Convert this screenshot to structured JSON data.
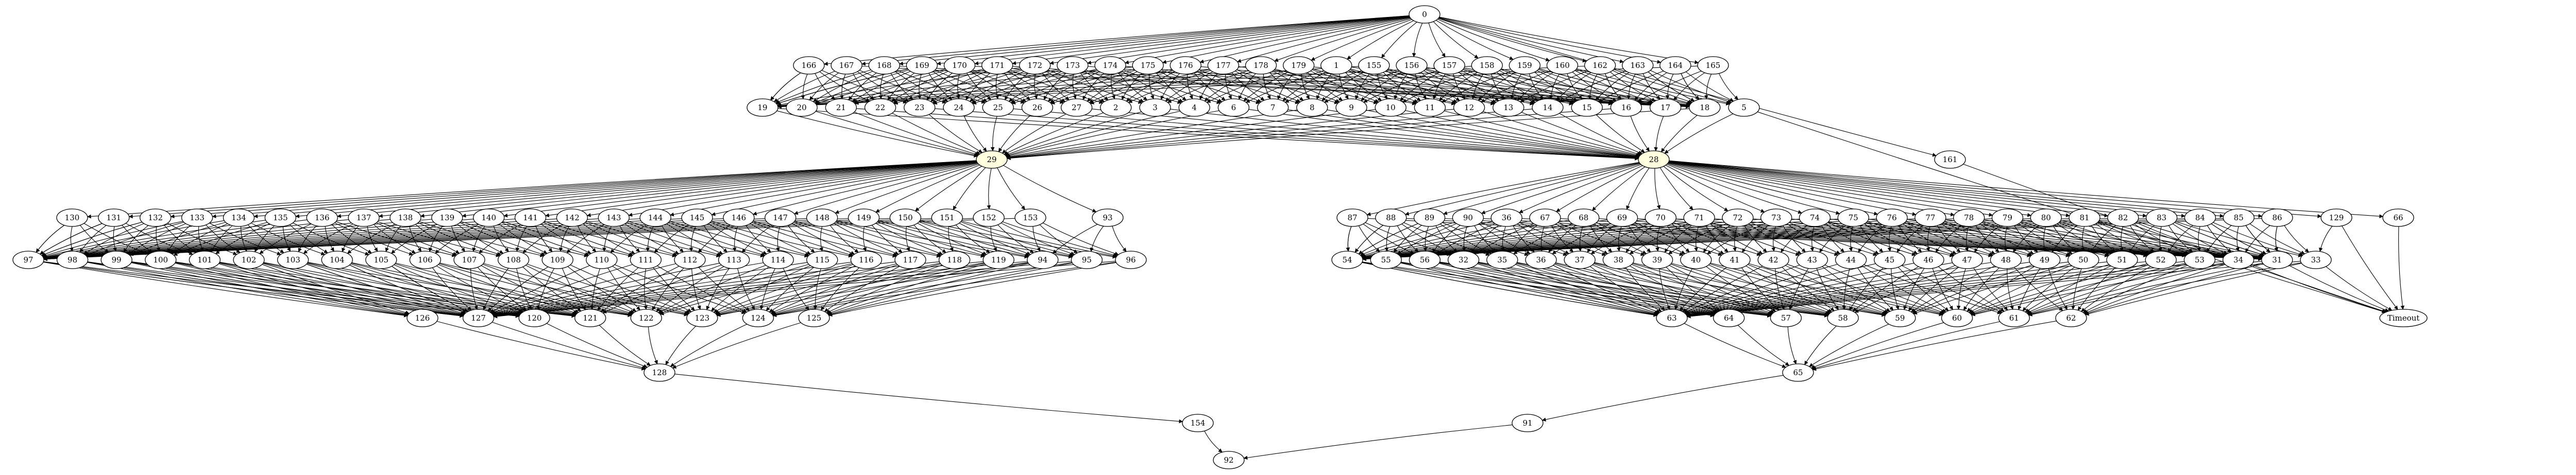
{
  "graph": {
    "nodes": [
      {
        "id": "0",
        "label": "0"
      },
      {
        "id": "166",
        "label": "166"
      },
      {
        "id": "167",
        "label": "167"
      },
      {
        "id": "168",
        "label": "168"
      },
      {
        "id": "169",
        "label": "169"
      },
      {
        "id": "170",
        "label": "170"
      },
      {
        "id": "171",
        "label": "171"
      },
      {
        "id": "172",
        "label": "172"
      },
      {
        "id": "173",
        "label": "173"
      },
      {
        "id": "174",
        "label": "174"
      },
      {
        "id": "175",
        "label": "175"
      },
      {
        "id": "176",
        "label": "176"
      },
      {
        "id": "177",
        "label": "177"
      },
      {
        "id": "178",
        "label": "178"
      },
      {
        "id": "179",
        "label": "179"
      },
      {
        "id": "1",
        "label": "1"
      },
      {
        "id": "155",
        "label": "155"
      },
      {
        "id": "156",
        "label": "156"
      },
      {
        "id": "157",
        "label": "157"
      },
      {
        "id": "158",
        "label": "158"
      },
      {
        "id": "159",
        "label": "159"
      },
      {
        "id": "160",
        "label": "160"
      },
      {
        "id": "162",
        "label": "162"
      },
      {
        "id": "163",
        "label": "163"
      },
      {
        "id": "164",
        "label": "164"
      },
      {
        "id": "165",
        "label": "165"
      },
      {
        "id": "161",
        "label": "161"
      },
      {
        "id": "19",
        "label": "19"
      },
      {
        "id": "20",
        "label": "20"
      },
      {
        "id": "21",
        "label": "21"
      },
      {
        "id": "22",
        "label": "22"
      },
      {
        "id": "23",
        "label": "23"
      },
      {
        "id": "24",
        "label": "24"
      },
      {
        "id": "25",
        "label": "25"
      },
      {
        "id": "26",
        "label": "26"
      },
      {
        "id": "27",
        "label": "27"
      },
      {
        "id": "2",
        "label": "2"
      },
      {
        "id": "3",
        "label": "3"
      },
      {
        "id": "4",
        "label": "4"
      },
      {
        "id": "6",
        "label": "6"
      },
      {
        "id": "7",
        "label": "7"
      },
      {
        "id": "8",
        "label": "8"
      },
      {
        "id": "9",
        "label": "9"
      },
      {
        "id": "10",
        "label": "10"
      },
      {
        "id": "11",
        "label": "11"
      },
      {
        "id": "12",
        "label": "12"
      },
      {
        "id": "13",
        "label": "13"
      },
      {
        "id": "14",
        "label": "14"
      },
      {
        "id": "15",
        "label": "15"
      },
      {
        "id": "16",
        "label": "16"
      },
      {
        "id": "17",
        "label": "17"
      },
      {
        "id": "18",
        "label": "18"
      },
      {
        "id": "5",
        "label": "5"
      },
      {
        "id": "29",
        "label": "29",
        "highlight": true
      },
      {
        "id": "28",
        "label": "28",
        "highlight": true
      },
      {
        "id": "130",
        "label": "130"
      },
      {
        "id": "131",
        "label": "131"
      },
      {
        "id": "132",
        "label": "132"
      },
      {
        "id": "133",
        "label": "133"
      },
      {
        "id": "134",
        "label": "134"
      },
      {
        "id": "135",
        "label": "135"
      },
      {
        "id": "136",
        "label": "136"
      },
      {
        "id": "137",
        "label": "137"
      },
      {
        "id": "138",
        "label": "138"
      },
      {
        "id": "139",
        "label": "139"
      },
      {
        "id": "140",
        "label": "140"
      },
      {
        "id": "141",
        "label": "141"
      },
      {
        "id": "142",
        "label": "142"
      },
      {
        "id": "143",
        "label": "143"
      },
      {
        "id": "144",
        "label": "144"
      },
      {
        "id": "145",
        "label": "145"
      },
      {
        "id": "146",
        "label": "146"
      },
      {
        "id": "147",
        "label": "147"
      },
      {
        "id": "148",
        "label": "148"
      },
      {
        "id": "149",
        "label": "149"
      },
      {
        "id": "150",
        "label": "150"
      },
      {
        "id": "151",
        "label": "151"
      },
      {
        "id": "152",
        "label": "152"
      },
      {
        "id": "153",
        "label": "153"
      },
      {
        "id": "93",
        "label": "93"
      },
      {
        "id": "87",
        "label": "87"
      },
      {
        "id": "88",
        "label": "88"
      },
      {
        "id": "89",
        "label": "89"
      },
      {
        "id": "90",
        "label": "90"
      },
      {
        "id": "36",
        "label": "36"
      },
      {
        "id": "67",
        "label": "67"
      },
      {
        "id": "68",
        "label": "68"
      },
      {
        "id": "69",
        "label": "69"
      },
      {
        "id": "70",
        "label": "70"
      },
      {
        "id": "71",
        "label": "71"
      },
      {
        "id": "72",
        "label": "72"
      },
      {
        "id": "73",
        "label": "73"
      },
      {
        "id": "74",
        "label": "74"
      },
      {
        "id": "75",
        "label": "75"
      },
      {
        "id": "76",
        "label": "76"
      },
      {
        "id": "77",
        "label": "77"
      },
      {
        "id": "78",
        "label": "78"
      },
      {
        "id": "79",
        "label": "79"
      },
      {
        "id": "80",
        "label": "80"
      },
      {
        "id": "81",
        "label": "81"
      },
      {
        "id": "82",
        "label": "82"
      },
      {
        "id": "83",
        "label": "83"
      },
      {
        "id": "84",
        "label": "84"
      },
      {
        "id": "85",
        "label": "85"
      },
      {
        "id": "86",
        "label": "86"
      },
      {
        "id": "129",
        "label": "129"
      },
      {
        "id": "66",
        "label": "66"
      },
      {
        "id": "97",
        "label": "97"
      },
      {
        "id": "98",
        "label": "98"
      },
      {
        "id": "99",
        "label": "99"
      },
      {
        "id": "100",
        "label": "100"
      },
      {
        "id": "101",
        "label": "101"
      },
      {
        "id": "102",
        "label": "102"
      },
      {
        "id": "103",
        "label": "103"
      },
      {
        "id": "104",
        "label": "104"
      },
      {
        "id": "105",
        "label": "105"
      },
      {
        "id": "106",
        "label": "106"
      },
      {
        "id": "107",
        "label": "107"
      },
      {
        "id": "108",
        "label": "108"
      },
      {
        "id": "109",
        "label": "109"
      },
      {
        "id": "110",
        "label": "110"
      },
      {
        "id": "111",
        "label": "111"
      },
      {
        "id": "112",
        "label": "112"
      },
      {
        "id": "113",
        "label": "113"
      },
      {
        "id": "114",
        "label": "114"
      },
      {
        "id": "115",
        "label": "115"
      },
      {
        "id": "116",
        "label": "116"
      },
      {
        "id": "117",
        "label": "117"
      },
      {
        "id": "118",
        "label": "118"
      },
      {
        "id": "119",
        "label": "119"
      },
      {
        "id": "94",
        "label": "94"
      },
      {
        "id": "95",
        "label": "95"
      },
      {
        "id": "96",
        "label": "96"
      },
      {
        "id": "54",
        "label": "54"
      },
      {
        "id": "55",
        "label": "55"
      },
      {
        "id": "56",
        "label": "56"
      },
      {
        "id": "32",
        "label": "32"
      },
      {
        "id": "35",
        "label": "35"
      },
      {
        "id": "36b",
        "label": "36"
      },
      {
        "id": "37",
        "label": "37"
      },
      {
        "id": "38",
        "label": "38"
      },
      {
        "id": "39",
        "label": "39"
      },
      {
        "id": "40",
        "label": "40"
      },
      {
        "id": "41",
        "label": "41"
      },
      {
        "id": "42",
        "label": "42"
      },
      {
        "id": "43",
        "label": "43"
      },
      {
        "id": "44",
        "label": "44"
      },
      {
        "id": "45",
        "label": "45"
      },
      {
        "id": "46",
        "label": "46"
      },
      {
        "id": "47",
        "label": "47"
      },
      {
        "id": "48",
        "label": "48"
      },
      {
        "id": "49",
        "label": "49"
      },
      {
        "id": "50",
        "label": "50"
      },
      {
        "id": "51",
        "label": "51"
      },
      {
        "id": "52",
        "label": "52"
      },
      {
        "id": "53",
        "label": "53"
      },
      {
        "id": "34",
        "label": "34"
      },
      {
        "id": "31",
        "label": "31"
      },
      {
        "id": "33",
        "label": "33"
      },
      {
        "id": "Timeout",
        "label": "Timeout",
        "timeout": true
      },
      {
        "id": "126",
        "label": "126"
      },
      {
        "id": "127",
        "label": "127"
      },
      {
        "id": "120",
        "label": "120"
      },
      {
        "id": "121",
        "label": "121"
      },
      {
        "id": "122",
        "label": "122"
      },
      {
        "id": "123",
        "label": "123"
      },
      {
        "id": "124",
        "label": "124"
      },
      {
        "id": "125",
        "label": "125"
      },
      {
        "id": "63",
        "label": "63"
      },
      {
        "id": "64",
        "label": "64"
      },
      {
        "id": "57",
        "label": "57"
      },
      {
        "id": "58",
        "label": "58"
      },
      {
        "id": "59",
        "label": "59"
      },
      {
        "id": "60",
        "label": "60"
      },
      {
        "id": "61",
        "label": "61"
      },
      {
        "id": "62",
        "label": "62"
      },
      {
        "id": "128",
        "label": "128",
        "blue": true
      },
      {
        "id": "65",
        "label": "65",
        "blue": true
      },
      {
        "id": "154",
        "label": "154"
      },
      {
        "id": "91",
        "label": "91"
      },
      {
        "id": "92",
        "label": "92",
        "blue": true
      }
    ],
    "colors": {
      "edge": "#000000",
      "node_stroke": "#000000",
      "node_fill": "#ffffff",
      "highlight_fill": "#ffffe0",
      "blue_stroke": "#0000ff",
      "timeout_stroke": "#ff0000"
    }
  }
}
